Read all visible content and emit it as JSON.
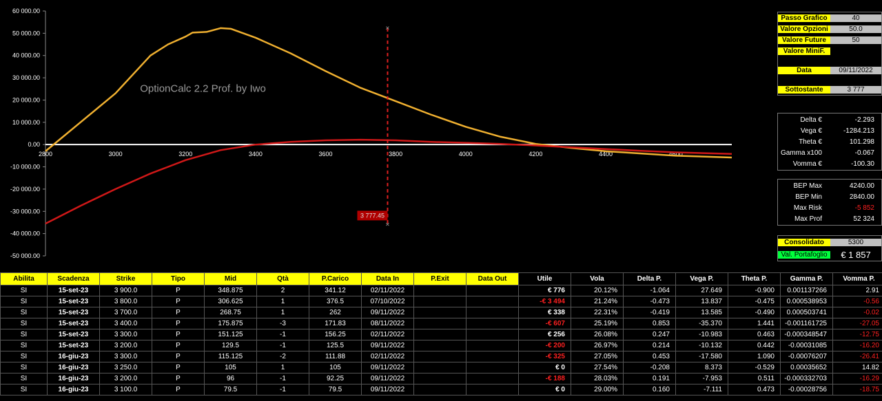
{
  "chart_data": {
    "type": "line",
    "watermark": "OptionCalc 2.2 Prof. by Iwo",
    "xlim": [
      2800,
      4760
    ],
    "ylim": [
      -50000,
      60000
    ],
    "x_ticks": [
      2800,
      3000,
      3200,
      3400,
      3600,
      3800,
      4000,
      4200,
      4400,
      4600
    ],
    "x_tick_labels": [
      "2800",
      "3000",
      "3200",
      "3400",
      "3600",
      "3800",
      "4000",
      "4200",
      "4400",
      "4600"
    ],
    "y_ticks": [
      60000,
      50000,
      40000,
      30000,
      20000,
      10000,
      0,
      -10000,
      -20000,
      -30000,
      -40000,
      -50000
    ],
    "y_tick_labels": [
      "60 000.00",
      "50 000.00",
      "40 000.00",
      "30 000.00",
      "20 000.00",
      "10 000.00",
      "0.00",
      "-10 000.00",
      "-20 000.00",
      "-30 000.00",
      "-40 000.00",
      "-50 000.00"
    ],
    "marker": {
      "x": 3777,
      "label": "3 777.45",
      "y_top": 52324,
      "y_bottom": -35900
    },
    "series": [
      {
        "color": "#f0b030",
        "points": [
          [
            2800,
            -3000
          ],
          [
            2850,
            3500
          ],
          [
            2900,
            10000
          ],
          [
            3000,
            23000
          ],
          [
            3100,
            40000
          ],
          [
            3150,
            45000
          ],
          [
            3200,
            48500
          ],
          [
            3220,
            50300
          ],
          [
            3260,
            50600
          ],
          [
            3300,
            52300
          ],
          [
            3330,
            52000
          ],
          [
            3400,
            48000
          ],
          [
            3500,
            41000
          ],
          [
            3600,
            33000
          ],
          [
            3700,
            25500
          ],
          [
            3800,
            19500
          ],
          [
            3900,
            13500
          ],
          [
            4000,
            8000
          ],
          [
            4100,
            3500
          ],
          [
            4200,
            300
          ],
          [
            4300,
            -1500
          ],
          [
            4400,
            -3000
          ],
          [
            4500,
            -4000
          ],
          [
            4600,
            -5000
          ],
          [
            4760,
            -5800
          ]
        ]
      },
      {
        "color": "#d01818",
        "points": [
          [
            2800,
            -35500
          ],
          [
            2900,
            -27500
          ],
          [
            3000,
            -20000
          ],
          [
            3100,
            -13000
          ],
          [
            3200,
            -7000
          ],
          [
            3300,
            -2500
          ],
          [
            3400,
            0
          ],
          [
            3500,
            1200
          ],
          [
            3600,
            1900
          ],
          [
            3700,
            2200
          ],
          [
            3800,
            1900
          ],
          [
            3900,
            1200
          ],
          [
            4000,
            800
          ],
          [
            4100,
            300
          ],
          [
            4200,
            -400
          ],
          [
            4300,
            -1200
          ],
          [
            4400,
            -2000
          ],
          [
            4500,
            -2800
          ],
          [
            4600,
            -3500
          ],
          [
            4760,
            -4200
          ]
        ]
      }
    ]
  },
  "panels": {
    "settings": [
      {
        "label": "Passo Grafico",
        "value": "40"
      },
      {
        "label": "Valore Opzioni",
        "value": "50.0"
      },
      {
        "label": "Valore Future",
        "value": "50"
      },
      {
        "label": "Valore MiniF.",
        "value": ""
      }
    ],
    "date": {
      "label": "Data",
      "value": "09/11/2022"
    },
    "underlying": {
      "label": "Sottostante",
      "value": "3 777"
    },
    "greeks": [
      {
        "label": "Delta €",
        "value": "-2.293"
      },
      {
        "label": "Vega €",
        "value": "-1284.213"
      },
      {
        "label": "Theta €",
        "value": "101.298"
      },
      {
        "label": "Gamma x100",
        "value": "-0.067"
      },
      {
        "label": "Vomma €",
        "value": "-100.30"
      }
    ],
    "bep": [
      {
        "label": "BEP Max",
        "value": "4240.00"
      },
      {
        "label": "BEP Min",
        "value": "2840.00"
      },
      {
        "label": "Max Risk",
        "value": "-5 852"
      },
      {
        "label": "Max Prof",
        "value": "52 324"
      }
    ],
    "portfolio": {
      "consolidated_label": "Consolidato",
      "consolidated_value": "5300",
      "value_label": "Val. Portafoglio",
      "value": "€ 1 857"
    }
  },
  "table": {
    "headers": [
      "Abilita",
      "Scadenza",
      "Strike",
      "Tipo",
      "Mid",
      "Qtà",
      "P.Carico",
      "Data In",
      "P.Exit",
      "Data Out",
      "Utile",
      "Vola",
      "Delta P.",
      "Vega P.",
      "Theta P.",
      "Gamma P.",
      "Vomma P."
    ],
    "rows": [
      [
        "SI",
        "15-set-23",
        "3 900.0",
        "P",
        "348.875",
        "2",
        "341.12",
        "02/11/2022",
        "",
        "",
        "€ 776",
        "20.12%",
        "-1.064",
        "27.649",
        "-0.900",
        "0.001137266",
        "2.91"
      ],
      [
        "SI",
        "15-set-23",
        "3 800.0",
        "P",
        "306.625",
        "1",
        "376.5",
        "07/10/2022",
        "",
        "",
        "-€ 3 494",
        "21.24%",
        "-0.473",
        "13.837",
        "-0.475",
        "0.000538953",
        "-0.56"
      ],
      [
        "SI",
        "15-set-23",
        "3 700.0",
        "P",
        "268.75",
        "1",
        "262",
        "09/11/2022",
        "",
        "",
        "€ 338",
        "22.31%",
        "-0.419",
        "13.585",
        "-0.490",
        "0.000503741",
        "-0.02"
      ],
      [
        "SI",
        "15-set-23",
        "3 400.0",
        "P",
        "175.875",
        "-3",
        "171.83",
        "08/11/2022",
        "",
        "",
        "-€ 607",
        "25.19%",
        "0.853",
        "-35.370",
        "1.441",
        "-0.001161725",
        "-27.05"
      ],
      [
        "SI",
        "15-set-23",
        "3 300.0",
        "P",
        "151.125",
        "-1",
        "156.25",
        "02/11/2022",
        "",
        "",
        "€ 256",
        "26.08%",
        "0.247",
        "-10.983",
        "0.463",
        "-0.000348547",
        "-12.75"
      ],
      [
        "SI",
        "15-set-23",
        "3 200.0",
        "P",
        "129.5",
        "-1",
        "125.5",
        "09/11/2022",
        "",
        "",
        "-€ 200",
        "26.97%",
        "0.214",
        "-10.132",
        "0.442",
        "-0.00031085",
        "-16.20"
      ],
      [
        "SI",
        "16-giu-23",
        "3 300.0",
        "P",
        "115.125",
        "-2",
        "111.88",
        "02/11/2022",
        "",
        "",
        "-€ 325",
        "27.05%",
        "0.453",
        "-17.580",
        "1.090",
        "-0.00076207",
        "-26.41"
      ],
      [
        "SI",
        "16-giu-23",
        "3 250.0",
        "P",
        "105",
        "1",
        "105",
        "09/11/2022",
        "",
        "",
        "€ 0",
        "27.54%",
        "-0.208",
        "8.373",
        "-0.529",
        "0.00035652",
        "14.82"
      ],
      [
        "SI",
        "16-giu-23",
        "3 200.0",
        "P",
        "96",
        "-1",
        "92.25",
        "09/11/2022",
        "",
        "",
        "-€ 188",
        "28.03%",
        "0.191",
        "-7.953",
        "0.511",
        "-0.000332703",
        "-16.29"
      ],
      [
        "SI",
        "16-giu-23",
        "3 100.0",
        "P",
        "79.5",
        "-1",
        "79.5",
        "09/11/2022",
        "",
        "",
        "€ 0",
        "29.00%",
        "0.160",
        "-7.111",
        "0.473",
        "-0.00028756",
        "-18.75"
      ]
    ]
  }
}
